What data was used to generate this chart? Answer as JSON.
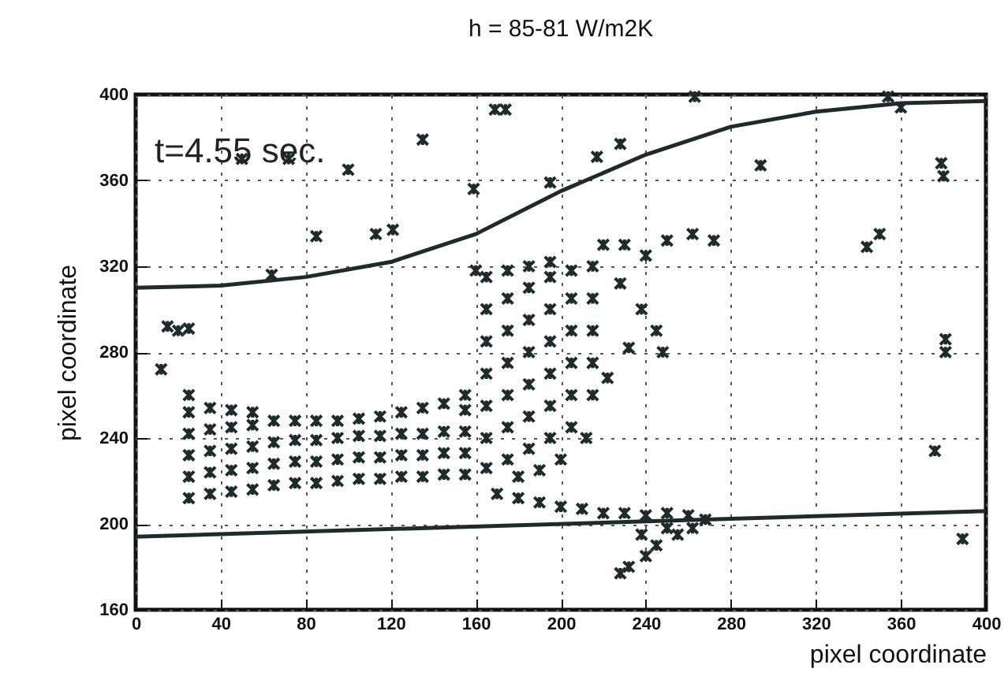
{
  "chart_data": {
    "type": "scatter",
    "title": "h = 85-81 W/m2K",
    "xlabel": "pixel coordinate",
    "ylabel": "pixel coordinate",
    "annotations": [
      "t=4.55 sec."
    ],
    "xlim": [
      0,
      400
    ],
    "xticks": [
      0,
      40,
      80,
      120,
      160,
      200,
      240,
      280,
      320,
      360,
      400
    ],
    "ylim": [
      160,
      400
    ],
    "yticks": [
      160,
      200,
      240,
      280,
      320,
      360,
      400
    ],
    "grid": true,
    "marker": "cross",
    "series": [
      {
        "color": "#1f2b2b",
        "x": [
          25,
          25,
          25,
          25,
          25,
          25,
          35,
          35,
          35,
          35,
          35,
          45,
          45,
          45,
          45,
          45,
          55,
          55,
          55,
          55,
          55,
          65,
          65,
          65,
          65,
          75,
          75,
          75,
          75,
          85,
          85,
          85,
          85,
          95,
          95,
          95,
          95,
          105,
          105,
          105,
          105,
          115,
          115,
          115,
          115,
          125,
          125,
          125,
          125,
          135,
          135,
          135,
          135,
          145,
          145,
          145,
          145,
          155,
          155,
          155,
          155,
          155,
          165,
          165,
          165,
          165,
          165,
          165,
          165,
          175,
          175,
          175,
          175,
          175,
          175,
          175,
          185,
          185,
          185,
          185,
          185,
          185,
          185,
          195,
          195,
          195,
          195,
          195,
          195,
          195,
          205,
          205,
          205,
          205,
          205,
          205,
          215,
          215,
          215,
          215,
          215,
          160,
          220,
          230,
          240,
          250,
          262,
          272,
          228,
          238,
          245,
          248,
          232,
          222,
          212,
          200,
          170,
          180,
          190,
          200,
          210,
          220,
          230,
          240,
          250,
          260,
          268,
          255,
          245,
          240,
          232,
          228,
          250,
          238,
          262,
          180,
          190,
          15,
          20,
          25,
          12,
          50,
          72,
          100,
          135,
          85,
          113,
          121,
          64,
          159,
          169,
          174,
          263,
          354,
          360,
          228,
          217,
          195,
          294,
          379,
          380,
          344,
          350,
          381,
          381,
          376,
          389
        ],
        "values": [
          212,
          222,
          232,
          242,
          252,
          260,
          214,
          224,
          234,
          244,
          254,
          215,
          225,
          235,
          245,
          253,
          216,
          226,
          236,
          246,
          252,
          218,
          228,
          238,
          248,
          219,
          229,
          239,
          248,
          219,
          229,
          239,
          248,
          220,
          230,
          240,
          248,
          221,
          231,
          241,
          249,
          221,
          231,
          241,
          250,
          222,
          232,
          242,
          252,
          222,
          232,
          242,
          254,
          223,
          233,
          243,
          256,
          223,
          233,
          243,
          253,
          260,
          226,
          240,
          255,
          270,
          285,
          300,
          315,
          230,
          245,
          260,
          275,
          290,
          305,
          318,
          235,
          250,
          265,
          280,
          295,
          310,
          320,
          240,
          255,
          270,
          285,
          300,
          315,
          322,
          245,
          260,
          275,
          290,
          305,
          318,
          260,
          275,
          290,
          305,
          320,
          318,
          330,
          330,
          325,
          332,
          335,
          332,
          312,
          300,
          290,
          280,
          282,
          268,
          240,
          230,
          214,
          212,
          210,
          208,
          207,
          205,
          205,
          204,
          205,
          204,
          202,
          195,
          190,
          185,
          180,
          177,
          198,
          195,
          198,
          222,
          225,
          292,
          290,
          291,
          272,
          370,
          370,
          365,
          379,
          334,
          335,
          337,
          316,
          356,
          393,
          393,
          399,
          399,
          394,
          377,
          371,
          359,
          367,
          368,
          362,
          329,
          335,
          286,
          280,
          234,
          193
        ]
      },
      {
        "type": "line",
        "color": "#1f2b2b",
        "marker": "none",
        "line_style": "solid",
        "x": [
          0,
          40,
          80,
          120,
          160,
          200,
          240,
          280,
          320,
          360,
          400
        ],
        "values": [
          310,
          311,
          315,
          322,
          335,
          355,
          372,
          385,
          392,
          396,
          397
        ]
      },
      {
        "type": "line",
        "color": "#1f2b2b",
        "marker": "none",
        "line_style": "solid",
        "x": [
          0,
          400
        ],
        "values": [
          194,
          206
        ]
      }
    ]
  }
}
